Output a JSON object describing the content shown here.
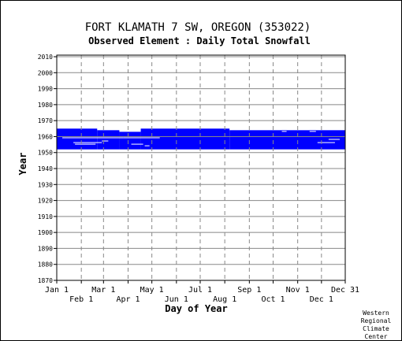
{
  "chart_data": {
    "type": "heatmap",
    "title": "FORT KLAMATH 7 SW, OREGON   (353022)",
    "subtitle": "Observed Element : Daily Total Snowfall",
    "xlabel": "Day of Year",
    "ylabel": "Year",
    "xlim": [
      1,
      365
    ],
    "ylim": [
      1870,
      2011
    ],
    "grid": true,
    "color": "#0000ff",
    "y_ticks": [
      2010,
      2000,
      1990,
      1980,
      1970,
      1960,
      1950,
      1940,
      1930,
      1920,
      1910,
      1900,
      1890,
      1880,
      1870
    ],
    "x_ticks_top": [
      {
        "label": "Jan 1",
        "day": 1
      },
      {
        "label": "Mar 1",
        "day": 60
      },
      {
        "label": "May 1",
        "day": 121
      },
      {
        "label": "Jul 1",
        "day": 182
      },
      {
        "label": "Sep 1",
        "day": 244
      },
      {
        "label": "Nov 1",
        "day": 305
      },
      {
        "label": "Dec 31",
        "day": 365
      }
    ],
    "x_ticks_bottom": [
      {
        "label": "Feb 1",
        "day": 32
      },
      {
        "label": "Apr 1",
        "day": 91
      },
      {
        "label": "Jun 1",
        "day": 152
      },
      {
        "label": "Aug 1",
        "day": 213
      },
      {
        "label": "Oct 1",
        "day": 274
      },
      {
        "label": "Dec 1",
        "day": 335
      }
    ],
    "coverage": [
      {
        "day_start": 1,
        "day_end": 52,
        "year_start": 1952,
        "year_end": 1965
      },
      {
        "day_start": 52,
        "day_end": 80,
        "year_start": 1952,
        "year_end": 1964
      },
      {
        "day_start": 80,
        "day_end": 107,
        "year_start": 1952,
        "year_end": 1963
      },
      {
        "day_start": 107,
        "day_end": 219,
        "year_start": 1952,
        "year_end": 1965
      },
      {
        "day_start": 219,
        "day_end": 365,
        "year_start": 1952,
        "year_end": 1964
      }
    ],
    "gaps": [
      {
        "day_start": 8,
        "day_end": 85,
        "year": 1959
      },
      {
        "day_start": 85,
        "day_end": 131,
        "year": 1959
      },
      {
        "day_start": 22,
        "day_end": 58,
        "year": 1956
      },
      {
        "day_start": 24,
        "day_end": 50,
        "year": 1955
      },
      {
        "day_start": 58,
        "day_end": 66,
        "year": 1957
      },
      {
        "day_start": 95,
        "day_end": 110,
        "year": 1955
      },
      {
        "day_start": 112,
        "day_end": 118,
        "year": 1954
      },
      {
        "day_start": 285,
        "day_end": 291,
        "year": 1963
      },
      {
        "day_start": 320,
        "day_end": 328,
        "year": 1963
      },
      {
        "day_start": 330,
        "day_end": 352,
        "year": 1956
      },
      {
        "day_start": 344,
        "day_end": 358,
        "year": 1958
      }
    ]
  },
  "credit": [
    "Western",
    "Regional",
    "Climate",
    "Center"
  ]
}
